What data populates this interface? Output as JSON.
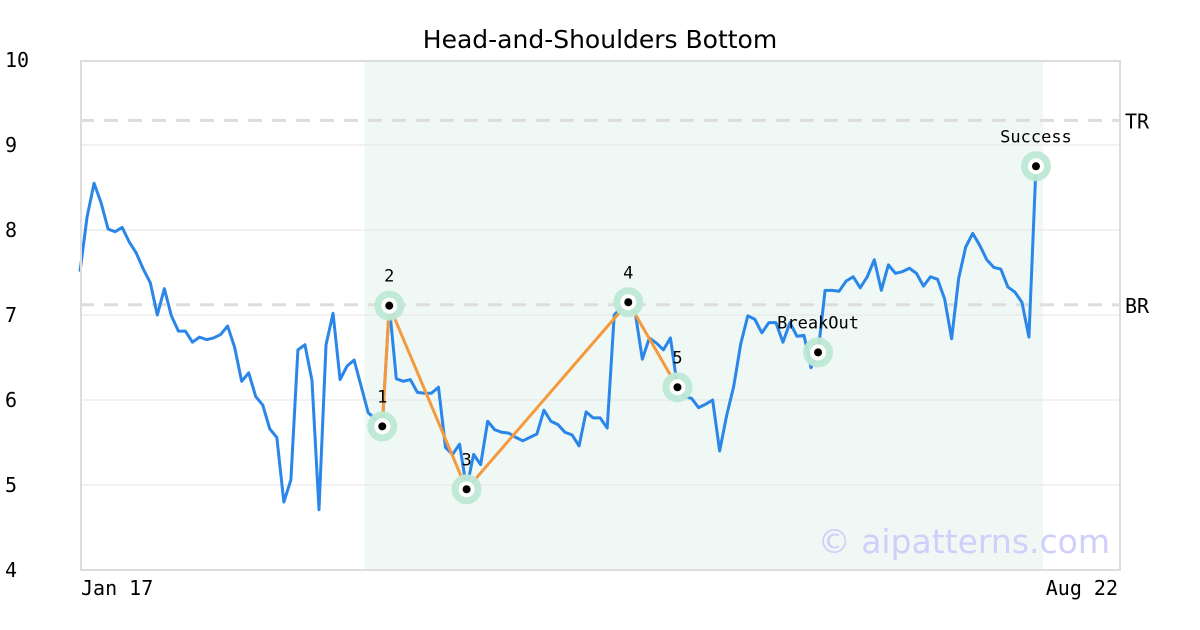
{
  "chart_data": {
    "type": "line",
    "title": "Head-and-Shoulders Bottom",
    "xlabel": "",
    "ylabel": "",
    "ylim": [
      4,
      10
    ],
    "yticks": [
      "4",
      "5",
      "6",
      "7",
      "8",
      "9",
      "10"
    ],
    "x_tick_labels": [
      "Jan 17",
      "Aug 22"
    ],
    "grid": true,
    "series": [
      {
        "color": "#2a86e8",
        "values": [
          7.51,
          8.15,
          8.55,
          8.32,
          8.01,
          7.98,
          8.03,
          7.86,
          7.73,
          7.54,
          7.38,
          7.0,
          7.31,
          6.99,
          6.81,
          6.81,
          6.68,
          6.74,
          6.71,
          6.73,
          6.77,
          6.87,
          6.62,
          6.22,
          6.32,
          6.04,
          5.94,
          5.66,
          5.56,
          4.8,
          5.06,
          6.59,
          6.65,
          6.23,
          4.71,
          6.65,
          7.02,
          6.24,
          6.4,
          6.47,
          6.16,
          5.85,
          5.78,
          5.69,
          7.11,
          6.25,
          6.22,
          6.24,
          6.09,
          6.08,
          6.08,
          6.15,
          5.44,
          5.36,
          5.48,
          4.96,
          5.36,
          5.24,
          5.75,
          5.65,
          5.62,
          5.61,
          5.56,
          5.52,
          5.56,
          5.6,
          5.88,
          5.75,
          5.71,
          5.62,
          5.59,
          5.46,
          5.86,
          5.79,
          5.79,
          5.67,
          7.0,
          7.09,
          7.15,
          7.02,
          6.48,
          6.73,
          6.67,
          6.59,
          6.73,
          6.15,
          6.04,
          6.02,
          5.91,
          5.95,
          6.0,
          5.4,
          5.82,
          6.16,
          6.66,
          6.99,
          6.95,
          6.79,
          6.91,
          6.91,
          6.68,
          6.91,
          6.75,
          6.76,
          6.38,
          6.56,
          7.29,
          7.29,
          7.28,
          7.4,
          7.45,
          7.32,
          7.45,
          7.65,
          7.29,
          7.59,
          7.49,
          7.51,
          7.55,
          7.49,
          7.34,
          7.45,
          7.42,
          7.19,
          6.72,
          7.43,
          7.8,
          7.96,
          7.82,
          7.65,
          7.56,
          7.54,
          7.33,
          7.27,
          7.15,
          6.74,
          8.75,
          8.75
        ]
      }
    ],
    "pattern_points": [
      {
        "label": "1",
        "index": 43,
        "value": 5.69
      },
      {
        "label": "2",
        "index": 44,
        "value": 7.11
      },
      {
        "label": "3",
        "index": 55,
        "value": 4.95
      },
      {
        "label": "4",
        "index": 78,
        "value": 7.15
      },
      {
        "label": "5",
        "index": 85,
        "value": 6.15
      }
    ],
    "event_points": [
      {
        "label": "BreakOut",
        "index": 105,
        "value": 6.56
      },
      {
        "label": "Success",
        "index": 136,
        "value": 8.75
      }
    ],
    "levels": [
      {
        "label": "TR",
        "value": 9.29
      },
      {
        "label": "BR",
        "value": 7.12
      }
    ],
    "pattern_range_index": [
      40.5,
      137
    ],
    "colors": {
      "pattern_line": "#f59a3c",
      "marker_halo": "#bde8d5",
      "shade": "#eff8f4",
      "level_line": "#dddddd"
    },
    "watermark": "© aipatterns.com"
  }
}
